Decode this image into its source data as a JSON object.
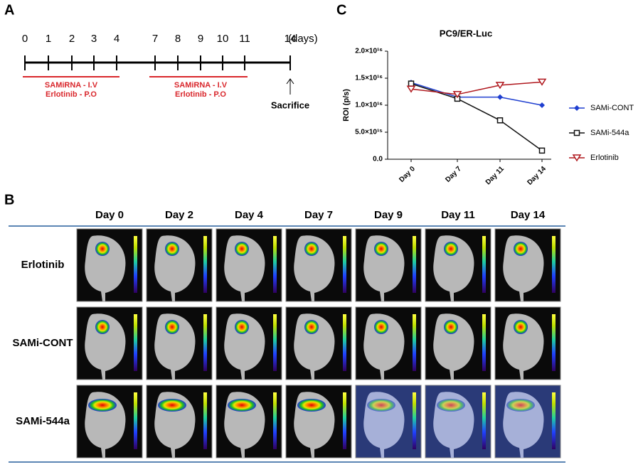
{
  "panel_a": {
    "label": "A",
    "days": [
      0,
      1,
      2,
      3,
      4,
      7,
      8,
      9,
      10,
      11,
      14
    ],
    "unit": "(days)",
    "treatments": [
      {
        "line1": "SAMiRNA  - I.V",
        "line2": "Erlotinib - P.O"
      },
      {
        "line1": "SAMiRNA  - I.V",
        "line2": "Erlotinib - P.O"
      }
    ],
    "endpoint": "Sacrifice"
  },
  "panel_b": {
    "label": "B",
    "columns": [
      "Day 0",
      "Day 2",
      "Day 4",
      "Day 7",
      "Day 9",
      "Day 11",
      "Day 14"
    ],
    "rows": [
      "Erlotinib",
      "SAMi-CONT",
      "SAMi-544a"
    ]
  },
  "panel_c": {
    "label": "C"
  },
  "chart_data": {
    "type": "line",
    "title": "PC9/ER-Luc",
    "y_label": "ROI (p/s)",
    "categories": [
      "Day 0",
      "Day 7",
      "Day 11",
      "Day 14"
    ],
    "ylim": [
      0,
      20000000000000000
    ],
    "yticks": [
      {
        "value": 0,
        "label": "0.0"
      },
      {
        "value": 5000000000000000,
        "label": "5.0×10¹⁵"
      },
      {
        "value": 10000000000000000,
        "label": "1.0×10¹⁶"
      },
      {
        "value": 15000000000000000,
        "label": "1.5×10¹⁶"
      },
      {
        "value": 20000000000000000,
        "label": "2.0×10¹⁶"
      }
    ],
    "series": [
      {
        "name": "SAMi-CONT",
        "color": "#1f3fd0",
        "marker": "diamond",
        "values": [
          14200000000000000,
          11500000000000000,
          11500000000000000,
          10000000000000000
        ]
      },
      {
        "name": "SAMi-544a",
        "color": "#111111",
        "marker": "square",
        "values": [
          14000000000000000,
          11200000000000000,
          7200000000000000,
          1600000000000000
        ]
      },
      {
        "name": "Erlotinib",
        "color": "#b0181e",
        "marker": "triangle-down",
        "values": [
          13000000000000000,
          12000000000000000,
          13700000000000000,
          14300000000000000
        ]
      }
    ]
  }
}
